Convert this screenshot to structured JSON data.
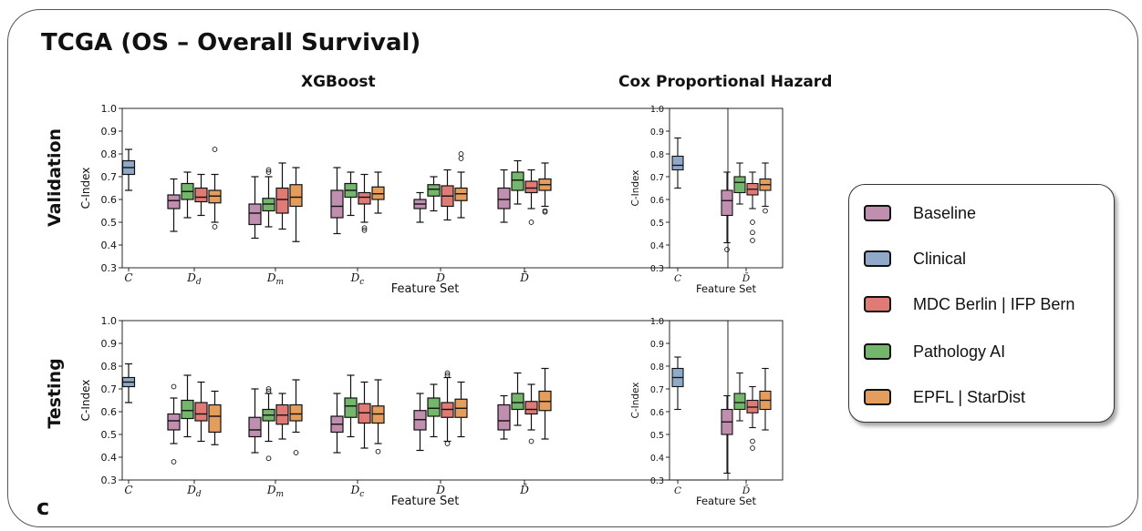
{
  "figure": {
    "title": "TCGA (OS – Overall Survival)",
    "panel_letter": "c",
    "col_xgboost": "XGBoost",
    "col_cox": "Cox Proportional Hazard",
    "row_validation": "Validation",
    "row_testing": "Testing"
  },
  "legend": {
    "items": [
      {
        "label": "Baseline",
        "color": "#c08fb0"
      },
      {
        "label": "Clinical",
        "color": "#8fa9c8"
      },
      {
        "label": "MDC Berlin | IFP Bern",
        "color": "#df7a74"
      },
      {
        "label": "Pathology AI",
        "color": "#74b66b"
      },
      {
        "label": "EPFL | StarDist",
        "color": "#e49d5c"
      }
    ]
  },
  "colors": {
    "Baseline": "#c08fb0",
    "Clinical": "#8fa9c8",
    "MDC Berlin | IFP Bern": "#df7a74",
    "Pathology AI": "#74b66b",
    "EPFL | StarDist": "#e49d5c"
  },
  "chart_data": [
    {
      "type": "box",
      "id": "xgb-val",
      "xlabel": "Feature Set",
      "ylabel": "C-Index",
      "ylim": [
        0.3,
        1.0
      ],
      "yticks": [
        "0.3",
        "0.4",
        "0.5",
        "0.6",
        "0.7",
        "0.8",
        "0.9",
        "1.0"
      ],
      "groups": [
        {
          "label": "C",
          "boxes": [
            {
              "series": "Clinical",
              "q1": 0.71,
              "median": 0.74,
              "q3": 0.77,
              "whislo": 0.64,
              "whishi": 0.82,
              "fliers": []
            }
          ]
        },
        {
          "label": "Dd",
          "boxes": [
            {
              "series": "Baseline",
              "q1": 0.56,
              "median": 0.595,
              "q3": 0.62,
              "whislo": 0.46,
              "whishi": 0.69,
              "fliers": []
            },
            {
              "series": "Pathology AI",
              "q1": 0.6,
              "median": 0.635,
              "q3": 0.67,
              "whislo": 0.52,
              "whishi": 0.72,
              "fliers": []
            },
            {
              "series": "MDC Berlin | IFP Bern",
              "q1": 0.59,
              "median": 0.61,
              "q3": 0.65,
              "whislo": 0.53,
              "whishi": 0.71,
              "fliers": []
            },
            {
              "series": "EPFL | StarDist",
              "q1": 0.585,
              "median": 0.615,
              "q3": 0.64,
              "whislo": 0.5,
              "whishi": 0.71,
              "fliers": [
                0.82,
                0.48
              ]
            }
          ]
        },
        {
          "label": "Dm",
          "boxes": [
            {
              "series": "Baseline",
              "q1": 0.49,
              "median": 0.54,
              "q3": 0.58,
              "whislo": 0.43,
              "whishi": 0.7,
              "fliers": []
            },
            {
              "series": "Pathology AI",
              "q1": 0.55,
              "median": 0.58,
              "q3": 0.605,
              "whislo": 0.48,
              "whishi": 0.7,
              "fliers": [
                0.72,
                0.73
              ]
            },
            {
              "series": "MDC Berlin | IFP Bern",
              "q1": 0.54,
              "median": 0.6,
              "q3": 0.65,
              "whislo": 0.47,
              "whishi": 0.76,
              "fliers": []
            },
            {
              "series": "EPFL | StarDist",
              "q1": 0.57,
              "median": 0.61,
              "q3": 0.665,
              "whislo": 0.415,
              "whishi": 0.74,
              "fliers": []
            }
          ]
        },
        {
          "label": "Dc",
          "boxes": [
            {
              "series": "Baseline",
              "q1": 0.52,
              "median": 0.57,
              "q3": 0.64,
              "whislo": 0.45,
              "whishi": 0.74,
              "fliers": []
            },
            {
              "series": "Pathology AI",
              "q1": 0.61,
              "median": 0.64,
              "q3": 0.67,
              "whislo": 0.53,
              "whishi": 0.72,
              "fliers": []
            },
            {
              "series": "MDC Berlin | IFP Bern",
              "q1": 0.58,
              "median": 0.61,
              "q3": 0.63,
              "whislo": 0.5,
              "whishi": 0.71,
              "fliers": [
                0.465,
                0.475
              ]
            },
            {
              "series": "EPFL | StarDist",
              "q1": 0.6,
              "median": 0.625,
              "q3": 0.655,
              "whislo": 0.54,
              "whishi": 0.72,
              "fliers": []
            }
          ]
        },
        {
          "label": "D",
          "boxes": [
            {
              "series": "Baseline",
              "q1": 0.56,
              "median": 0.58,
              "q3": 0.6,
              "whislo": 0.5,
              "whishi": 0.63,
              "fliers": []
            },
            {
              "series": "Pathology AI",
              "q1": 0.615,
              "median": 0.645,
              "q3": 0.665,
              "whislo": 0.55,
              "whishi": 0.7,
              "fliers": []
            },
            {
              "series": "MDC Berlin | IFP Bern",
              "q1": 0.57,
              "median": 0.615,
              "q3": 0.66,
              "whislo": 0.51,
              "whishi": 0.73,
              "fliers": []
            },
            {
              "series": "EPFL | StarDist",
              "q1": 0.595,
              "median": 0.625,
              "q3": 0.65,
              "whislo": 0.52,
              "whishi": 0.72,
              "fliers": [
                0.78,
                0.8
              ]
            }
          ]
        },
        {
          "label": "D̄",
          "boxes": [
            {
              "series": "Baseline",
              "q1": 0.56,
              "median": 0.6,
              "q3": 0.65,
              "whislo": 0.5,
              "whishi": 0.73,
              "fliers": []
            },
            {
              "series": "Pathology AI",
              "q1": 0.64,
              "median": 0.685,
              "q3": 0.72,
              "whislo": 0.58,
              "whishi": 0.77,
              "fliers": []
            },
            {
              "series": "MDC Berlin | IFP Bern",
              "q1": 0.63,
              "median": 0.65,
              "q3": 0.68,
              "whislo": 0.56,
              "whishi": 0.73,
              "fliers": [
                0.5
              ]
            },
            {
              "series": "EPFL | StarDist",
              "q1": 0.64,
              "median": 0.665,
              "q3": 0.69,
              "whislo": 0.57,
              "whishi": 0.76,
              "fliers": [
                0.55,
                0.545
              ]
            }
          ]
        }
      ]
    },
    {
      "type": "box",
      "id": "xgb-test",
      "xlabel": "Feature Set",
      "ylabel": "C-Index",
      "ylim": [
        0.3,
        1.0
      ],
      "yticks": [
        "0.3",
        "0.4",
        "0.5",
        "0.6",
        "0.7",
        "0.8",
        "0.9",
        "1.0"
      ],
      "groups": [
        {
          "label": "C",
          "boxes": [
            {
              "series": "Clinical",
              "q1": 0.71,
              "median": 0.73,
              "q3": 0.75,
              "whislo": 0.64,
              "whishi": 0.81,
              "fliers": []
            }
          ]
        },
        {
          "label": "Dd",
          "boxes": [
            {
              "series": "Baseline",
              "q1": 0.52,
              "median": 0.56,
              "q3": 0.59,
              "whislo": 0.46,
              "whishi": 0.66,
              "fliers": [
                0.71,
                0.38
              ]
            },
            {
              "series": "Pathology AI",
              "q1": 0.57,
              "median": 0.605,
              "q3": 0.65,
              "whislo": 0.49,
              "whishi": 0.76,
              "fliers": []
            },
            {
              "series": "MDC Berlin | IFP Bern",
              "q1": 0.56,
              "median": 0.59,
              "q3": 0.64,
              "whislo": 0.47,
              "whishi": 0.73,
              "fliers": []
            },
            {
              "series": "EPFL | StarDist",
              "q1": 0.51,
              "median": 0.58,
              "q3": 0.63,
              "whislo": 0.455,
              "whishi": 0.69,
              "fliers": []
            }
          ]
        },
        {
          "label": "Dm",
          "boxes": [
            {
              "series": "Baseline",
              "q1": 0.49,
              "median": 0.52,
              "q3": 0.575,
              "whislo": 0.42,
              "whishi": 0.7,
              "fliers": []
            },
            {
              "series": "Pathology AI",
              "q1": 0.56,
              "median": 0.585,
              "q3": 0.61,
              "whislo": 0.47,
              "whishi": 0.68,
              "fliers": [
                0.69,
                0.7,
                0.395
              ]
            },
            {
              "series": "MDC Berlin | IFP Bern",
              "q1": 0.545,
              "median": 0.585,
              "q3": 0.63,
              "whislo": 0.48,
              "whishi": 0.68,
              "fliers": []
            },
            {
              "series": "EPFL | StarDist",
              "q1": 0.56,
              "median": 0.59,
              "q3": 0.63,
              "whislo": 0.51,
              "whishi": 0.74,
              "fliers": [
                0.42
              ]
            }
          ]
        },
        {
          "label": "Dc",
          "boxes": [
            {
              "series": "Baseline",
              "q1": 0.51,
              "median": 0.545,
              "q3": 0.58,
              "whislo": 0.42,
              "whishi": 0.68,
              "fliers": []
            },
            {
              "series": "Pathology AI",
              "q1": 0.575,
              "median": 0.625,
              "q3": 0.66,
              "whislo": 0.49,
              "whishi": 0.76,
              "fliers": []
            },
            {
              "series": "MDC Berlin | IFP Bern",
              "q1": 0.55,
              "median": 0.595,
              "q3": 0.635,
              "whislo": 0.44,
              "whishi": 0.73,
              "fliers": []
            },
            {
              "series": "EPFL | StarDist",
              "q1": 0.55,
              "median": 0.59,
              "q3": 0.625,
              "whislo": 0.46,
              "whishi": 0.74,
              "fliers": [
                0.425
              ]
            }
          ]
        },
        {
          "label": "D",
          "boxes": [
            {
              "series": "Baseline",
              "q1": 0.52,
              "median": 0.565,
              "q3": 0.605,
              "whislo": 0.43,
              "whishi": 0.68,
              "fliers": []
            },
            {
              "series": "Pathology AI",
              "q1": 0.58,
              "median": 0.615,
              "q3": 0.66,
              "whislo": 0.49,
              "whishi": 0.72,
              "fliers": []
            },
            {
              "series": "MDC Berlin | IFP Bern",
              "q1": 0.575,
              "median": 0.61,
              "q3": 0.64,
              "whislo": 0.47,
              "whishi": 0.75,
              "fliers": [
                0.76,
                0.77,
                0.46
              ]
            },
            {
              "series": "EPFL | StarDist",
              "q1": 0.575,
              "median": 0.615,
              "q3": 0.655,
              "whislo": 0.49,
              "whishi": 0.73,
              "fliers": []
            }
          ]
        },
        {
          "label": "D̄",
          "boxes": [
            {
              "series": "Baseline",
              "q1": 0.52,
              "median": 0.56,
              "q3": 0.63,
              "whislo": 0.48,
              "whishi": 0.67,
              "fliers": []
            },
            {
              "series": "Pathology AI",
              "q1": 0.61,
              "median": 0.64,
              "q3": 0.68,
              "whislo": 0.54,
              "whishi": 0.77,
              "fliers": []
            },
            {
              "series": "MDC Berlin | IFP Bern",
              "q1": 0.59,
              "median": 0.61,
              "q3": 0.645,
              "whislo": 0.52,
              "whishi": 0.72,
              "fliers": [
                0.47
              ]
            },
            {
              "series": "EPFL | StarDist",
              "q1": 0.605,
              "median": 0.645,
              "q3": 0.69,
              "whislo": 0.48,
              "whishi": 0.79,
              "fliers": []
            }
          ]
        }
      ]
    },
    {
      "type": "box",
      "id": "cox-val",
      "xlabel": "Feature Set",
      "ylabel": "C-Index",
      "ylim": [
        0.3,
        1.0
      ],
      "yticks": [
        "0.3",
        "0.4",
        "0.5",
        "0.6",
        "0.7",
        "0.8",
        "0.9",
        "1.0"
      ],
      "groups": [
        {
          "label": "C",
          "boxes": [
            {
              "series": "Clinical",
              "q1": 0.73,
              "median": 0.75,
              "q3": 0.79,
              "whislo": 0.65,
              "whishi": 0.87,
              "fliers": []
            }
          ]
        },
        {
          "label": "D̄",
          "boxes": [
            {
              "series": "Baseline",
              "q1": 0.53,
              "median": 0.595,
              "q3": 0.64,
              "whislo": 0.41,
              "whishi": 0.72,
              "fliers": [
                0.38
              ]
            },
            {
              "series": "Pathology AI",
              "q1": 0.63,
              "median": 0.675,
              "q3": 0.7,
              "whislo": 0.58,
              "whishi": 0.76,
              "fliers": []
            },
            {
              "series": "MDC Berlin | IFP Bern",
              "q1": 0.62,
              "median": 0.645,
              "q3": 0.67,
              "whislo": 0.56,
              "whishi": 0.72,
              "fliers": [
                0.5,
                0.455,
                0.42
              ]
            },
            {
              "series": "EPFL | StarDist",
              "q1": 0.64,
              "median": 0.665,
              "q3": 0.69,
              "whislo": 0.57,
              "whishi": 0.76,
              "fliers": [
                0.55
              ]
            }
          ]
        }
      ]
    },
    {
      "type": "box",
      "id": "cox-test",
      "xlabel": "Feature Set",
      "ylabel": "C-Index",
      "ylim": [
        0.3,
        1.0
      ],
      "yticks": [
        "0.3",
        "0.4",
        "0.5",
        "0.6",
        "0.7",
        "0.8",
        "0.9",
        "1.0"
      ],
      "groups": [
        {
          "label": "C",
          "boxes": [
            {
              "series": "Clinical",
              "q1": 0.71,
              "median": 0.75,
              "q3": 0.79,
              "whislo": 0.61,
              "whishi": 0.84,
              "fliers": []
            }
          ]
        },
        {
          "label": "D̄",
          "boxes": [
            {
              "series": "Baseline",
              "q1": 0.5,
              "median": 0.555,
              "q3": 0.61,
              "whislo": 0.33,
              "whishi": 0.67,
              "fliers": []
            },
            {
              "series": "Pathology AI",
              "q1": 0.61,
              "median": 0.64,
              "q3": 0.68,
              "whislo": 0.56,
              "whishi": 0.77,
              "fliers": []
            },
            {
              "series": "MDC Berlin | IFP Bern",
              "q1": 0.595,
              "median": 0.62,
              "q3": 0.65,
              "whislo": 0.53,
              "whishi": 0.71,
              "fliers": [
                0.47,
                0.44
              ]
            },
            {
              "series": "EPFL | StarDist",
              "q1": 0.61,
              "median": 0.65,
              "q3": 0.69,
              "whislo": 0.52,
              "whishi": 0.79,
              "fliers": []
            }
          ]
        }
      ]
    }
  ]
}
